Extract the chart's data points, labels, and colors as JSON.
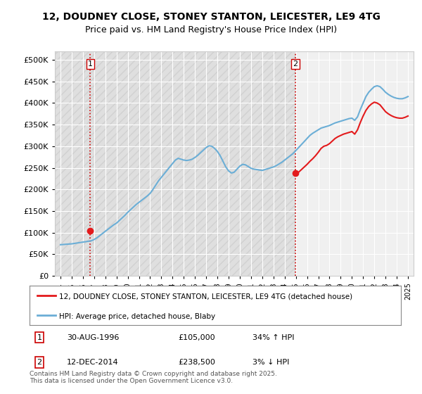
{
  "title_line1": "12, DOUDNEY CLOSE, STONEY STANTON, LEICESTER, LE9 4TG",
  "title_line2": "Price paid vs. HM Land Registry's House Price Index (HPI)",
  "ylabel": "",
  "yticks": [
    0,
    50000,
    100000,
    150000,
    200000,
    250000,
    300000,
    350000,
    400000,
    450000,
    500000
  ],
  "ytick_labels": [
    "£0",
    "£50K",
    "£100K",
    "£150K",
    "£200K",
    "£250K",
    "£300K",
    "£350K",
    "£400K",
    "£450K",
    "£500K"
  ],
  "ylim": [
    0,
    520000
  ],
  "xlim_start": 1993.5,
  "xlim_end": 2025.5,
  "sale1_date": 1996.66,
  "sale1_price": 105000,
  "sale1_label": "1",
  "sale2_date": 2014.95,
  "sale2_price": 238500,
  "sale2_label": "2",
  "hpi_color": "#6baed6",
  "price_color": "#e31a1c",
  "vline_color": "#cc0000",
  "vline_style": "dotted",
  "background_color": "#ffffff",
  "plot_bg_color": "#f0f0f0",
  "legend_label_red": "12, DOUDNEY CLOSE, STONEY STANTON, LEICESTER, LE9 4TG (detached house)",
  "legend_label_blue": "HPI: Average price, detached house, Blaby",
  "annotation1_text": "30-AUG-1996      £105,000      34% ↑ HPI",
  "annotation2_text": "12-DEC-2014      £238,500        3% ↓ HPI",
  "footer": "Contains HM Land Registry data © Crown copyright and database right 2025.\nThis data is licensed under the Open Government Licence v3.0.",
  "hpi_data_x": [
    1994.0,
    1994.25,
    1994.5,
    1994.75,
    1995.0,
    1995.25,
    1995.5,
    1995.75,
    1996.0,
    1996.25,
    1996.5,
    1996.75,
    1997.0,
    1997.25,
    1997.5,
    1997.75,
    1998.0,
    1998.25,
    1998.5,
    1998.75,
    1999.0,
    1999.25,
    1999.5,
    1999.75,
    2000.0,
    2000.25,
    2000.5,
    2000.75,
    2001.0,
    2001.25,
    2001.5,
    2001.75,
    2002.0,
    2002.25,
    2002.5,
    2002.75,
    2003.0,
    2003.25,
    2003.5,
    2003.75,
    2004.0,
    2004.25,
    2004.5,
    2004.75,
    2005.0,
    2005.25,
    2005.5,
    2005.75,
    2006.0,
    2006.25,
    2006.5,
    2006.75,
    2007.0,
    2007.25,
    2007.5,
    2007.75,
    2008.0,
    2008.25,
    2008.5,
    2008.75,
    2009.0,
    2009.25,
    2009.5,
    2009.75,
    2010.0,
    2010.25,
    2010.5,
    2010.75,
    2011.0,
    2011.25,
    2011.5,
    2011.75,
    2012.0,
    2012.25,
    2012.5,
    2012.75,
    2013.0,
    2013.25,
    2013.5,
    2013.75,
    2014.0,
    2014.25,
    2014.5,
    2014.75,
    2015.0,
    2015.25,
    2015.5,
    2015.75,
    2016.0,
    2016.25,
    2016.5,
    2016.75,
    2017.0,
    2017.25,
    2017.5,
    2017.75,
    2018.0,
    2018.25,
    2018.5,
    2018.75,
    2019.0,
    2019.25,
    2019.5,
    2019.75,
    2020.0,
    2020.25,
    2020.5,
    2020.75,
    2021.0,
    2021.25,
    2021.5,
    2021.75,
    2022.0,
    2022.25,
    2022.5,
    2022.75,
    2023.0,
    2023.25,
    2023.5,
    2023.75,
    2024.0,
    2024.25,
    2024.5,
    2024.75,
    2025.0
  ],
  "hpi_data_y": [
    72000,
    72500,
    73000,
    73500,
    74000,
    75000,
    76000,
    77000,
    78000,
    79000,
    80000,
    81000,
    84000,
    88000,
    93000,
    98000,
    103000,
    108000,
    113000,
    118000,
    122000,
    128000,
    134000,
    140000,
    147000,
    153000,
    159000,
    165000,
    170000,
    175000,
    180000,
    185000,
    191000,
    200000,
    210000,
    220000,
    228000,
    236000,
    244000,
    252000,
    260000,
    268000,
    272000,
    270000,
    268000,
    267000,
    268000,
    270000,
    274000,
    279000,
    285000,
    291000,
    297000,
    301000,
    300000,
    295000,
    288000,
    278000,
    265000,
    252000,
    243000,
    238000,
    240000,
    247000,
    254000,
    258000,
    257000,
    253000,
    249000,
    247000,
    246000,
    245000,
    244000,
    246000,
    248000,
    250000,
    252000,
    255000,
    259000,
    263000,
    268000,
    273000,
    278000,
    283000,
    290000,
    297000,
    304000,
    311000,
    318000,
    325000,
    330000,
    334000,
    338000,
    342000,
    344000,
    346000,
    348000,
    351000,
    354000,
    356000,
    358000,
    360000,
    362000,
    364000,
    365000,
    360000,
    368000,
    385000,
    400000,
    415000,
    425000,
    432000,
    438000,
    440000,
    438000,
    432000,
    425000,
    420000,
    416000,
    413000,
    411000,
    410000,
    410000,
    412000,
    415000
  ],
  "price_data_x": [
    1994.0,
    1994.25,
    1994.5,
    1994.75,
    1995.0,
    1995.25,
    1995.5,
    1995.75,
    1996.0,
    1996.25,
    1996.5,
    1996.66,
    1996.75,
    2014.95,
    2015.0,
    2015.25,
    2015.5,
    2015.75,
    2016.0,
    2016.25,
    2016.5,
    2016.75,
    2017.0,
    2017.25,
    2017.5,
    2017.75,
    2018.0,
    2018.25,
    2018.5,
    2018.75,
    2019.0,
    2019.25,
    2019.5,
    2019.75,
    2020.0,
    2020.25,
    2020.5,
    2020.75,
    2021.0,
    2021.25,
    2021.5,
    2021.75,
    2022.0,
    2022.25,
    2022.5,
    2022.75,
    2023.0,
    2023.25,
    2023.5,
    2023.75,
    2024.0,
    2024.25,
    2024.5,
    2024.75,
    2025.0
  ],
  "price_data_y": [
    null,
    null,
    null,
    null,
    null,
    null,
    null,
    null,
    null,
    null,
    null,
    105000,
    null,
    238500,
    238500,
    240000,
    246000,
    252000,
    258000,
    265000,
    271000,
    278000,
    286000,
    295000,
    300000,
    302000,
    306000,
    312000,
    318000,
    322000,
    325000,
    328000,
    330000,
    332000,
    334000,
    328000,
    338000,
    355000,
    370000,
    383000,
    392000,
    398000,
    402000,
    400000,
    396000,
    388000,
    380000,
    375000,
    371000,
    368000,
    366000,
    365000,
    365000,
    367000,
    370000
  ],
  "xtick_years": [
    1994,
    1995,
    1996,
    1997,
    1998,
    1999,
    2000,
    2001,
    2002,
    2003,
    2004,
    2005,
    2006,
    2007,
    2008,
    2009,
    2010,
    2011,
    2012,
    2013,
    2014,
    2015,
    2016,
    2017,
    2018,
    2019,
    2020,
    2021,
    2022,
    2023,
    2024,
    2025
  ]
}
